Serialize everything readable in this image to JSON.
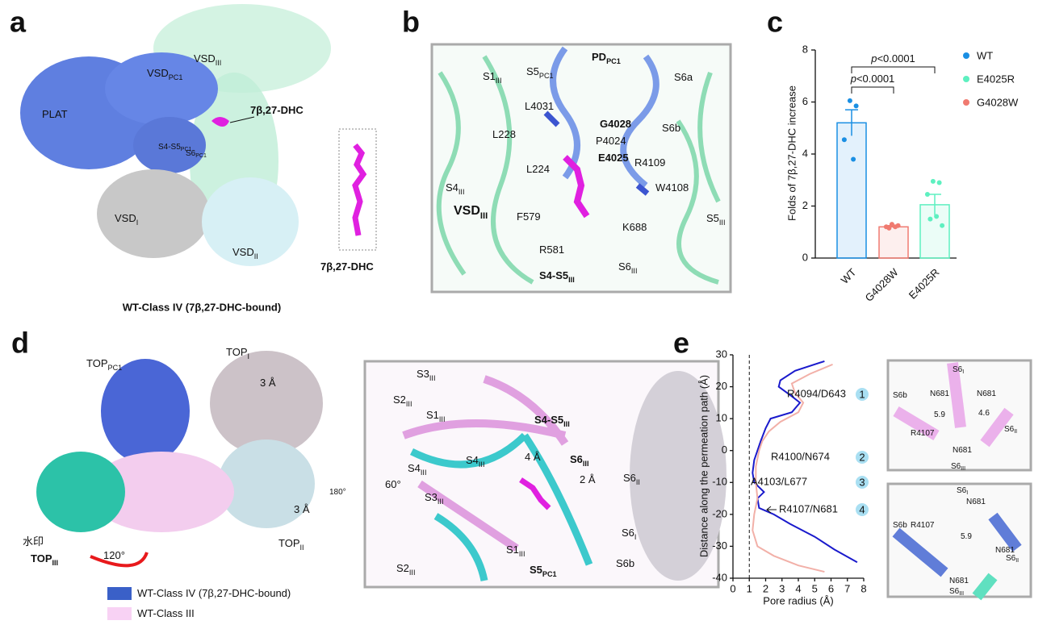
{
  "panel_a": {
    "label": "a",
    "labels": [
      {
        "text": "PLAT"
      },
      {
        "text": "VSD",
        "sub": "PC1"
      },
      {
        "text": "VSD",
        "sub": "III"
      },
      {
        "text": "7β,27-DHC"
      },
      {
        "text": "S4-S5",
        "sub": "PC1"
      },
      {
        "text": "S6",
        "sub": "PC1"
      },
      {
        "text": "VSD",
        "sub": "I"
      },
      {
        "text": "VSD",
        "sub": "II"
      },
      {
        "text": "7β,27-DHC"
      }
    ],
    "caption": "WT-Class IV (7β,27-DHC-bound)"
  },
  "panel_b": {
    "label": "b",
    "labels": [
      {
        "text": "PD",
        "sub": "PC1"
      },
      {
        "text": "S5",
        "sub": "PC1"
      },
      {
        "text": "S1",
        "sub": "III"
      },
      {
        "text": "S6a"
      },
      {
        "text": "L4031"
      },
      {
        "text": "G4028",
        "color": "#e8191c"
      },
      {
        "text": "L228"
      },
      {
        "text": "P4024"
      },
      {
        "text": "S6b"
      },
      {
        "text": "E4025",
        "color": "#e8191c"
      },
      {
        "text": "R4109"
      },
      {
        "text": "L224"
      },
      {
        "text": "W4108"
      },
      {
        "text": "S4",
        "sub": "III"
      },
      {
        "text": "VSD",
        "sub": "III"
      },
      {
        "text": "F579"
      },
      {
        "text": "K688"
      },
      {
        "text": "S5",
        "sub": "III"
      },
      {
        "text": "R581"
      },
      {
        "text": "S6",
        "sub": "III"
      },
      {
        "text": "S4-S5",
        "sub": "III"
      }
    ]
  },
  "panel_c": {
    "label": "c"
  },
  "panel_d": {
    "label": "d",
    "labels": [
      {
        "text": "TOP",
        "sub": "PC1"
      },
      {
        "text": "TOP",
        "sub": "I"
      },
      {
        "text": "3 Å"
      },
      {
        "text": "3 Å"
      },
      {
        "text": "TOP",
        "sub": "II"
      },
      {
        "text": "水印"
      },
      {
        "text": "TOP",
        "sub": "III"
      },
      {
        "text": "120°"
      },
      {
        "text": "180°"
      },
      {
        "text": "60°"
      },
      {
        "text": "S3",
        "sub": "III"
      },
      {
        "text": "S2",
        "sub": "III"
      },
      {
        "text": "S1",
        "sub": "III"
      },
      {
        "text": "S4-S5",
        "sub": "III"
      },
      {
        "text": "S4",
        "sub": "III"
      },
      {
        "text": "S4",
        "sub": "III"
      },
      {
        "text": "4 Å"
      },
      {
        "text": "S6",
        "sub": "III"
      },
      {
        "text": "2 Å"
      },
      {
        "text": "S6",
        "sub": "II"
      },
      {
        "text": "S3",
        "sub": "III"
      },
      {
        "text": "S6",
        "sub": "I"
      },
      {
        "text": "S1",
        "sub": "III"
      },
      {
        "text": "S2",
        "sub": "III"
      },
      {
        "text": "S5",
        "sub": "PC1"
      },
      {
        "text": "S6b"
      }
    ],
    "legend": [
      {
        "text": "WT-Class IV (7β,27-DHC-bound)"
      },
      {
        "text": "WT-Class III"
      }
    ]
  },
  "panel_e": {
    "label": "e",
    "labels": [
      {
        "text": "S6",
        "sub": "I"
      },
      {
        "text": "S6b"
      },
      {
        "text": "N681"
      },
      {
        "text": "N681"
      },
      {
        "text": "5.9"
      },
      {
        "text": "4.6"
      },
      {
        "text": "R4107"
      },
      {
        "text": "N681"
      },
      {
        "text": "S6",
        "sub": "II"
      },
      {
        "text": "S6",
        "sub": "III"
      },
      {
        "text": "S6",
        "sub": "I"
      },
      {
        "text": "N681"
      },
      {
        "text": "S6b"
      },
      {
        "text": "R4107"
      },
      {
        "text": "5.9"
      },
      {
        "text": "N681"
      },
      {
        "text": "S6",
        "sub": "II"
      },
      {
        "text": "N681"
      },
      {
        "text": "S6",
        "sub": "III"
      }
    ]
  },
  "chart_data": [
    {
      "type": "bar",
      "ylabel": "Folds of 7β,27-DHC increase",
      "categories": [
        "WT",
        "G4028W",
        "E4025R"
      ],
      "values": [
        5.2,
        1.2,
        2.05
      ],
      "errors": [
        0.5,
        0.05,
        0.4
      ],
      "colors": [
        "#1a8fe3",
        "#f07a70",
        "#5ef0c0"
      ],
      "points": [
        [
          6.05,
          5.85,
          4.55,
          3.8
        ],
        [
          1.3,
          1.25,
          1.2,
          1.2,
          1.15
        ],
        [
          2.95,
          2.9,
          2.45,
          1.6,
          1.5,
          1.25
        ]
      ],
      "ylim": [
        0,
        8
      ],
      "yticks": [
        0,
        2,
        4,
        6,
        8
      ],
      "annotations": [
        {
          "italic": "p",
          "text": "<0.0001"
        },
        {
          "italic": "p",
          "text": "<0.0001"
        }
      ],
      "legend": [
        {
          "name": "WT",
          "color": "#1a8fe3"
        },
        {
          "name": "E4025R",
          "color": "#5ef0c0"
        },
        {
          "name": "G4028W",
          "color": "#f07a70"
        }
      ]
    },
    {
      "type": "line",
      "xlabel": "Pore radius (Å)",
      "ylabel": "Distance along the permeation path (Å)",
      "xlim": [
        0,
        8
      ],
      "xticks": [
        0,
        1,
        2,
        3,
        4,
        5,
        6,
        7,
        8
      ],
      "ylim": [
        -40,
        30
      ],
      "yticks": [
        -40,
        -30,
        -20,
        -10,
        0,
        10,
        20,
        30
      ],
      "reference_x": 1,
      "series": [
        {
          "color": "#1a1acc",
          "x": [
            5.6,
            3.8,
            2.9,
            2.8,
            3.6,
            4.1,
            3.6,
            2.3,
            2.0,
            1.7,
            1.5,
            1.3,
            1.2,
            1.3,
            1.9,
            1.5,
            1.6,
            2.5,
            3.5,
            5.0,
            6.2,
            7.6
          ],
          "values": [
            28,
            25,
            22,
            20,
            17,
            15,
            12,
            10,
            7,
            3,
            0,
            -3,
            -7,
            -10,
            -13,
            -15,
            -18,
            -20,
            -23,
            -27,
            -31,
            -35
          ]
        },
        {
          "color": "#f2b0a8",
          "x": [
            6.1,
            4.7,
            3.6,
            3.8,
            4.3,
            4.0,
            2.9,
            2.2,
            1.8,
            1.6,
            1.4,
            1.4,
            1.5,
            1.3,
            1.2,
            1.5,
            2.5,
            4.0,
            5.6
          ],
          "values": [
            27,
            24,
            21,
            18,
            15,
            12,
            9,
            6,
            3,
            0,
            -5,
            -10,
            -15,
            -20,
            -25,
            -30,
            -33,
            -36,
            -38
          ]
        }
      ],
      "annotations": [
        {
          "text": "R4094/D643",
          "number": 1
        },
        {
          "text": "R4100/N674",
          "number": 2
        },
        {
          "text": "A4103/L677",
          "number": 3
        },
        {
          "text": "R4107/N681",
          "number": 4
        }
      ]
    }
  ]
}
